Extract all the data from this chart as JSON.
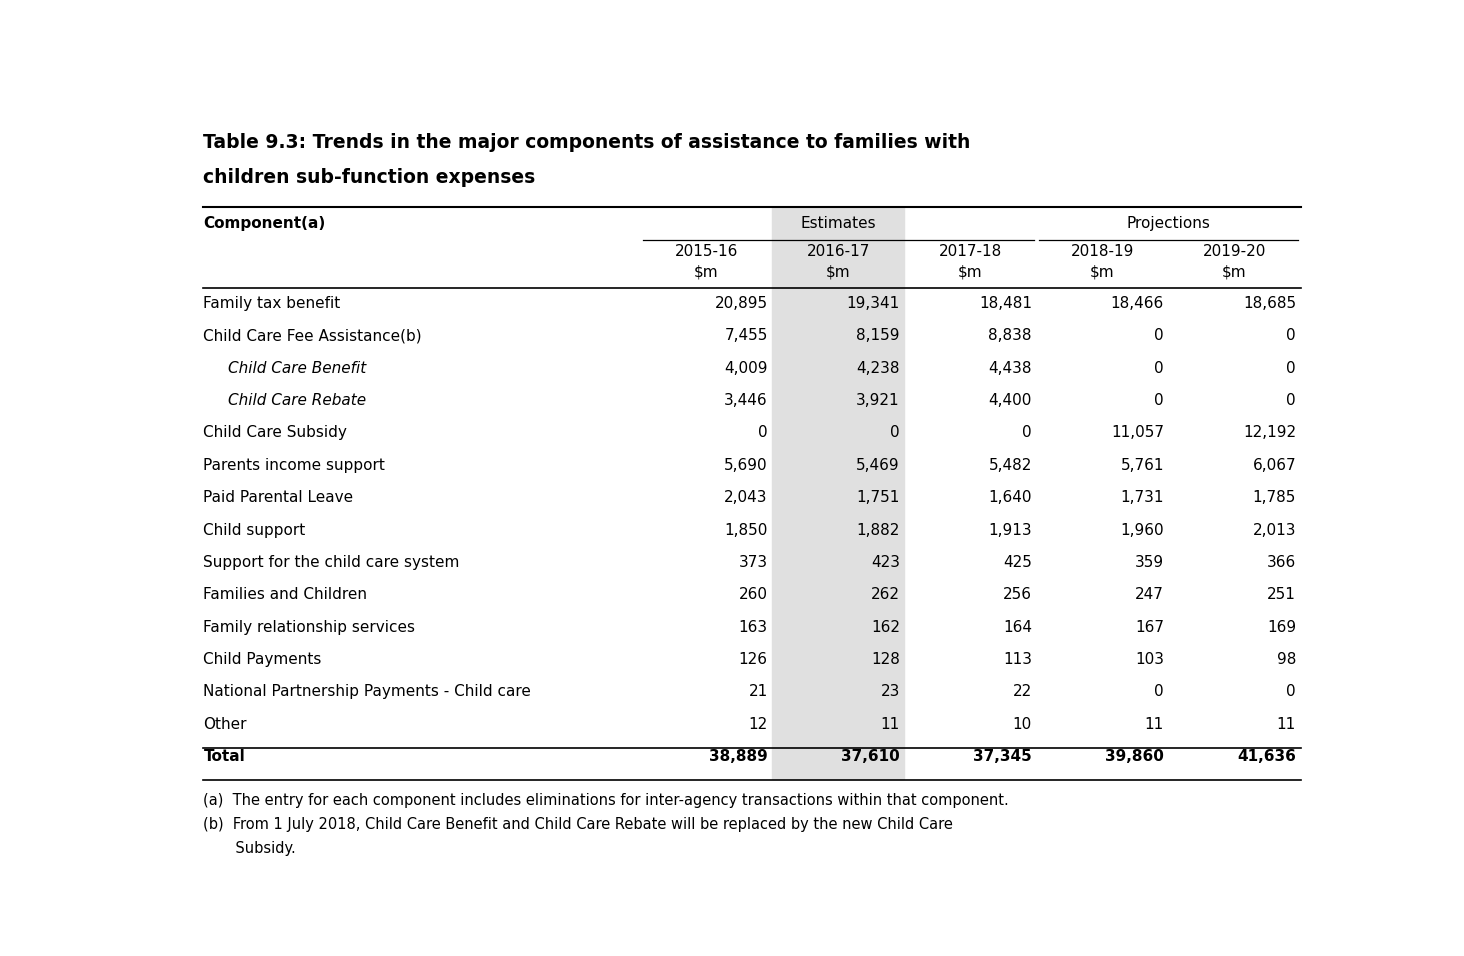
{
  "title_line1": "Table 9.3: Trends in the major components of assistance to families with",
  "title_line2": "children sub-function expenses",
  "col_headers": [
    "2015-16\n$m",
    "2016-17\n$m",
    "2017-18\n$m",
    "2018-19\n$m",
    "2019-20\n$m"
  ],
  "row_header": "Component(a)",
  "estimates_label": "Estimates",
  "projections_label": "Projections",
  "rows": [
    {
      "label": "Family tax benefit",
      "italic": false,
      "indent": false,
      "bold": false,
      "values": [
        "20,895",
        "19,341",
        "18,481",
        "18,466",
        "18,685"
      ]
    },
    {
      "label": "Child Care Fee Assistance(b)",
      "italic": false,
      "indent": false,
      "bold": false,
      "values": [
        "7,455",
        "8,159",
        "8,838",
        "0",
        "0"
      ]
    },
    {
      "label": "Child Care Benefit",
      "italic": true,
      "indent": true,
      "bold": false,
      "values": [
        "4,009",
        "4,238",
        "4,438",
        "0",
        "0"
      ]
    },
    {
      "label": "Child Care Rebate",
      "italic": true,
      "indent": true,
      "bold": false,
      "values": [
        "3,446",
        "3,921",
        "4,400",
        "0",
        "0"
      ]
    },
    {
      "label": "Child Care Subsidy",
      "italic": false,
      "indent": false,
      "bold": false,
      "values": [
        "0",
        "0",
        "0",
        "11,057",
        "12,192"
      ]
    },
    {
      "label": "Parents income support",
      "italic": false,
      "indent": false,
      "bold": false,
      "values": [
        "5,690",
        "5,469",
        "5,482",
        "5,761",
        "6,067"
      ]
    },
    {
      "label": "Paid Parental Leave",
      "italic": false,
      "indent": false,
      "bold": false,
      "values": [
        "2,043",
        "1,751",
        "1,640",
        "1,731",
        "1,785"
      ]
    },
    {
      "label": "Child support",
      "italic": false,
      "indent": false,
      "bold": false,
      "values": [
        "1,850",
        "1,882",
        "1,913",
        "1,960",
        "2,013"
      ]
    },
    {
      "label": "Support for the child care system",
      "italic": false,
      "indent": false,
      "bold": false,
      "values": [
        "373",
        "423",
        "425",
        "359",
        "366"
      ]
    },
    {
      "label": "Families and Children",
      "italic": false,
      "indent": false,
      "bold": false,
      "values": [
        "260",
        "262",
        "256",
        "247",
        "251"
      ]
    },
    {
      "label": "Family relationship services",
      "italic": false,
      "indent": false,
      "bold": false,
      "values": [
        "163",
        "162",
        "164",
        "167",
        "169"
      ]
    },
    {
      "label": "Child Payments",
      "italic": false,
      "indent": false,
      "bold": false,
      "values": [
        "126",
        "128",
        "113",
        "103",
        "98"
      ]
    },
    {
      "label": "National Partnership Payments - Child care",
      "italic": false,
      "indent": false,
      "bold": false,
      "values": [
        "21",
        "23",
        "22",
        "0",
        "0"
      ]
    },
    {
      "label": "Other",
      "italic": false,
      "indent": false,
      "bold": false,
      "values": [
        "12",
        "11",
        "10",
        "11",
        "11"
      ]
    },
    {
      "label": "Total",
      "italic": false,
      "indent": false,
      "bold": true,
      "values": [
        "38,889",
        "37,610",
        "37,345",
        "39,860",
        "41,636"
      ]
    }
  ],
  "footnotes": [
    "(a)  The entry for each component includes eliminations for inter-agency transactions within that component.",
    "(b)  From 1 July 2018, Child Care Benefit and Child Care Rebate will be replaced by the new Child Care",
    "       Subsidy."
  ],
  "highlight_col": 1,
  "highlight_color": "#e0e0e0",
  "bg_color": "#ffffff",
  "text_color": "#000000",
  "title_fontsize": 13.5,
  "header_fontsize": 11,
  "cell_fontsize": 11,
  "footnote_fontsize": 10.5
}
